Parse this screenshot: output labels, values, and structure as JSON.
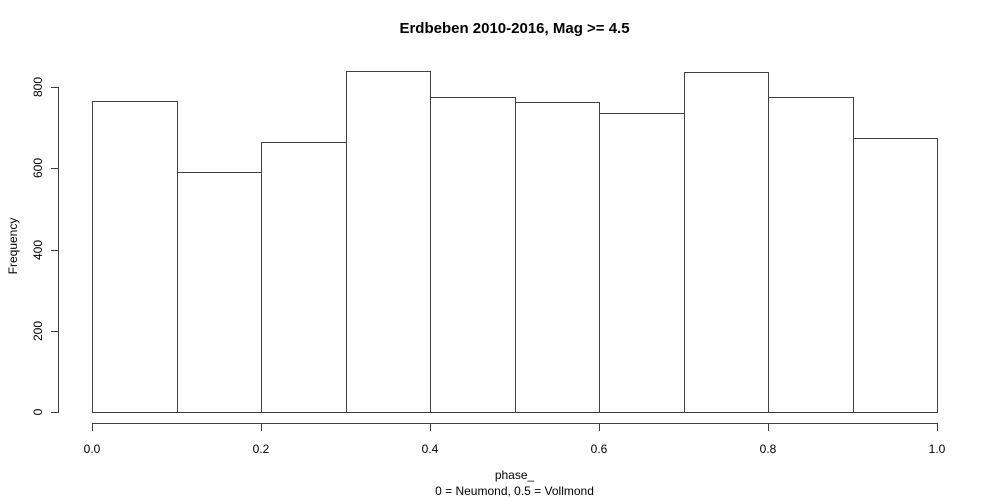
{
  "chart_data": {
    "type": "bar",
    "title": "Erdbeben 2010-2016, Mag >= 4.5",
    "xlabel": "phase_",
    "xlabel2": "0 = Neumond, 0.5 = Vollmond",
    "ylabel": "Frequency",
    "bin_edges": [
      0.0,
      0.1,
      0.2,
      0.3,
      0.4,
      0.5,
      0.6,
      0.7,
      0.8,
      0.9,
      1.0
    ],
    "values": [
      766,
      591,
      665,
      840,
      776,
      763,
      736,
      836,
      775,
      674
    ],
    "x_tick_labels": [
      "0.0",
      "0.2",
      "0.4",
      "0.6",
      "0.8",
      "1.0"
    ],
    "x_tick_values": [
      0.0,
      0.2,
      0.4,
      0.6,
      0.8,
      1.0
    ],
    "y_tick_labels": [
      "0",
      "200",
      "400",
      "600",
      "800"
    ],
    "y_tick_values": [
      0,
      200,
      400,
      600,
      800
    ],
    "xlim": [
      0.0,
      1.0
    ],
    "ylim": [
      0,
      800
    ],
    "grid": "off",
    "legend": "none",
    "bar_fill": "#ffffff",
    "line_color": "#3f3f3f"
  }
}
